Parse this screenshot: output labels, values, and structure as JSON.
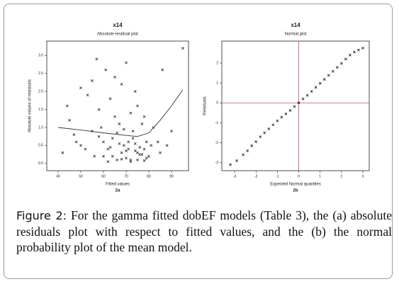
{
  "chart_data": [
    {
      "type": "scatter",
      "title": "x14",
      "subtitle": "Absolute-residual plot",
      "xlabel": "Fitted values",
      "panel": "2a",
      "ylabel": "Absolute values of residuals",
      "x": [
        42,
        45,
        48,
        50,
        52,
        55,
        57,
        58,
        60,
        61,
        62,
        63,
        64,
        65,
        66,
        67,
        68,
        68,
        69,
        70,
        70,
        71,
        72,
        72,
        73,
        74,
        74,
        75,
        75,
        76,
        77,
        78,
        78,
        79,
        80,
        82,
        85,
        88,
        90,
        95,
        44,
        47,
        53,
        56,
        59,
        62,
        65,
        67,
        69,
        71,
        73,
        75,
        77,
        79,
        81,
        60,
        64,
        66,
        70,
        72,
        74,
        76,
        63,
        68,
        55,
        50,
        58,
        78,
        84,
        86
      ],
      "y": [
        0.3,
        1.2,
        0.6,
        2.1,
        0.4,
        0.9,
        2.9,
        1.5,
        0.2,
        2.6,
        0.05,
        1.8,
        0.7,
        2.4,
        0.1,
        1.1,
        0.3,
        2.2,
        0.5,
        0.15,
        2.8,
        0.6,
        1.4,
        0.05,
        0.9,
        0.35,
        2.0,
        0.1,
        1.6,
        0.45,
        0.25,
        1.3,
        0.08,
        0.6,
        0.2,
        1.0,
        0.3,
        0.5,
        0.9,
        3.2,
        1.6,
        0.8,
        1.9,
        0.2,
        1.0,
        0.4,
        1.3,
        0.55,
        0.95,
        0.4,
        0.7,
        0.3,
        1.1,
        0.15,
        0.5,
        0.6,
        0.2,
        0.85,
        0.35,
        0.1,
        0.55,
        0.25,
        0.45,
        0.12,
        2.3,
        0.5,
        0.75,
        0.4,
        0.6,
        2.6
      ],
      "color": "#222222",
      "smooth": {
        "x": [
          40,
          50,
          60,
          70,
          75,
          80,
          85,
          90,
          95
        ],
        "y": [
          1.0,
          0.93,
          0.85,
          0.78,
          0.75,
          0.85,
          1.2,
          1.6,
          2.05
        ],
        "color": "#333333"
      },
      "xlim": [
        35,
        97.5
      ],
      "ylim": [
        -0.2,
        3.4
      ],
      "xticks": [
        40,
        50,
        60,
        70,
        80,
        90
      ],
      "yticks": [
        {
          "value": 0,
          "label": "0.0"
        },
        0.5,
        {
          "value": 1,
          "label": "1.0"
        },
        1.5,
        {
          "value": 2,
          "label": "2.0"
        },
        2.5,
        {
          "value": 3,
          "label": "3.0"
        }
      ]
    },
    {
      "type": "scatter",
      "title": "x14",
      "subtitle": "Normal plot",
      "xlabel": "Expected Normal quantiles",
      "panel": "2b",
      "ylabel": "Residuals",
      "x": [
        -3.2,
        -2.9,
        -2.6,
        -2.4,
        -2.2,
        -2.0,
        -1.8,
        -1.6,
        -1.4,
        -1.2,
        -1.0,
        -0.8,
        -0.6,
        -0.4,
        -0.2,
        0,
        0.2,
        0.4,
        0.6,
        0.8,
        1.0,
        1.2,
        1.4,
        1.6,
        1.8,
        2.0,
        2.2,
        2.4,
        2.6,
        2.8,
        3.0
      ],
      "y": [
        -3.1,
        -2.9,
        -2.6,
        -2.4,
        -2.15,
        -1.95,
        -1.7,
        -1.5,
        -1.3,
        -1.1,
        -0.9,
        -0.72,
        -0.55,
        -0.38,
        -0.18,
        0,
        0.2,
        0.38,
        0.58,
        0.78,
        0.98,
        1.18,
        1.38,
        1.58,
        1.78,
        1.98,
        2.2,
        2.4,
        2.55,
        2.65,
        2.75
      ],
      "color": "#111111",
      "reference_lines": {
        "x": 0,
        "y": 0,
        "color": "#c0506a"
      },
      "xlim": [
        -3.6,
        3.3
      ],
      "ylim": [
        -3.4,
        3.1
      ],
      "xticks": [
        -3,
        -2,
        -1,
        0,
        1,
        2,
        3
      ],
      "yticks": [
        -3,
        -2,
        -1,
        0,
        1,
        2
      ]
    }
  ],
  "caption": {
    "label": "Figure 2:",
    "text": "For the gamma fitted dobEF models (Table 3), the (a) absolute residuals plot with respect to fitted values, and the (b) the normal probability plot of the mean model."
  }
}
